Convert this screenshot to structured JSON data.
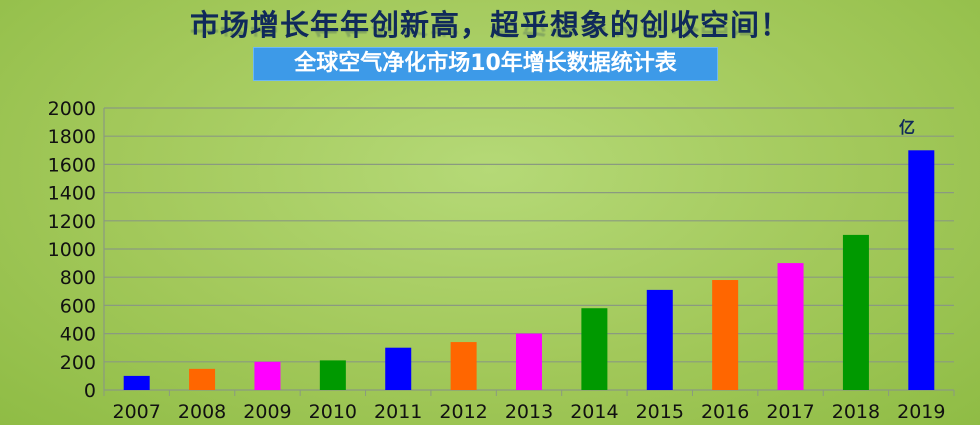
{
  "header": {
    "title": "市场增长年年创新高，超乎想象的创收空间！",
    "subtitle": "全球空气净化市场10年增长数据统计表"
  },
  "chart_data": {
    "type": "bar",
    "categories": [
      "2007",
      "2008",
      "2009",
      "2010",
      "2011",
      "2012",
      "2013",
      "2014",
      "2015",
      "2016",
      "2017",
      "2018",
      "2019"
    ],
    "values": [
      100,
      150,
      200,
      210,
      300,
      340,
      400,
      580,
      710,
      780,
      900,
      1100,
      1700
    ],
    "colors": [
      "#0000ff",
      "#ff6600",
      "#ff00ff",
      "#009900",
      "#0000ff",
      "#ff6600",
      "#ff00ff",
      "#009900",
      "#0000ff",
      "#ff6600",
      "#ff00ff",
      "#009900",
      "#0000ff"
    ],
    "unit_label": "亿",
    "ylim": [
      0,
      2000
    ],
    "yticks": [
      0,
      200,
      400,
      600,
      800,
      1000,
      1200,
      1400,
      1600,
      1800,
      2000
    ],
    "grid": true
  }
}
